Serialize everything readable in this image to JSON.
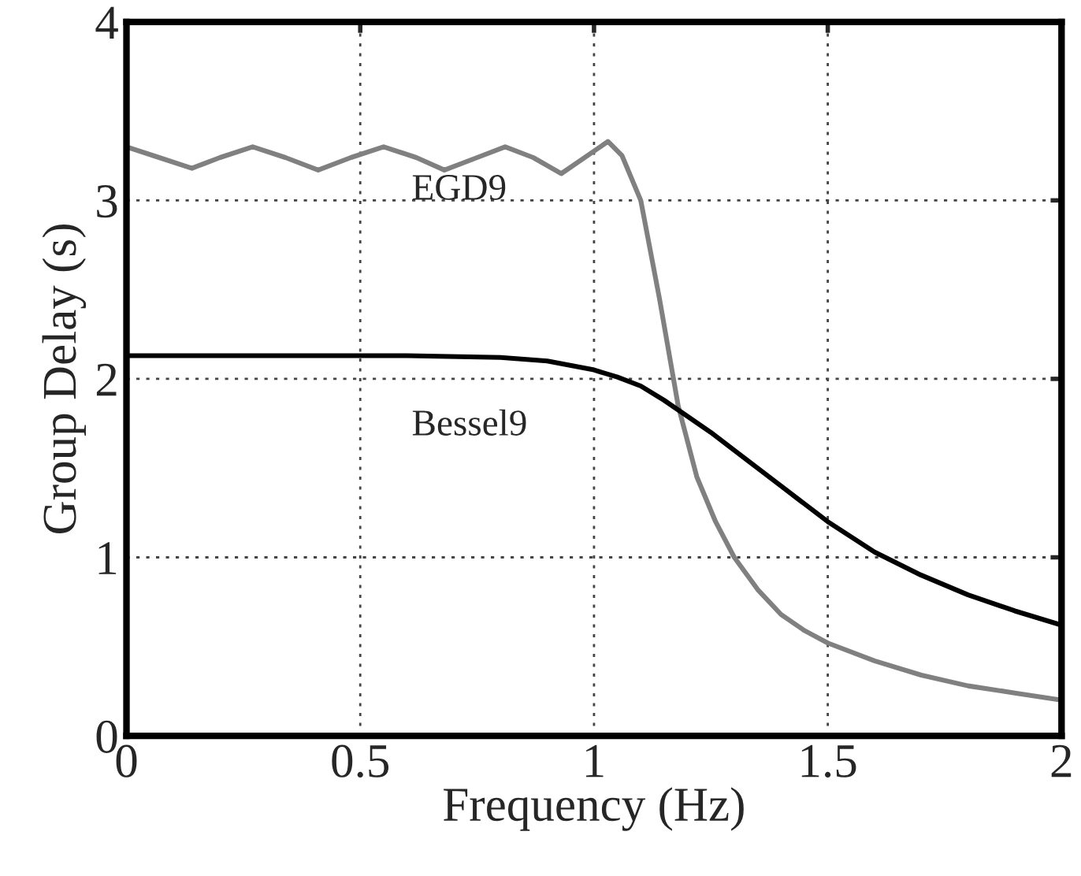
{
  "chart_data": {
    "type": "line",
    "xlabel": "Frequency (Hz)",
    "ylabel": "Group Delay (s)",
    "xlim": [
      0,
      2
    ],
    "ylim": [
      0,
      4
    ],
    "xticks": [
      0,
      {
        "value": 0.5,
        "label": "0.5"
      },
      1,
      {
        "value": 1.5,
        "label": "1.5"
      },
      2
    ],
    "yticks": [
      0,
      1,
      2,
      3,
      4
    ],
    "grid": true,
    "legend": false,
    "line_style": "solid",
    "marker": "none",
    "series": [
      {
        "name": "EGD9",
        "color": "#808080",
        "x": [
          0,
          0.07,
          0.14,
          0.2,
          0.27,
          0.34,
          0.41,
          0.48,
          0.55,
          0.62,
          0.68,
          0.75,
          0.81,
          0.87,
          0.93,
          0.98,
          1.03,
          1.06,
          1.1,
          1.14,
          1.18,
          1.22,
          1.26,
          1.3,
          1.35,
          1.4,
          1.45,
          1.5,
          1.6,
          1.7,
          1.8,
          1.9,
          2
        ],
        "values": [
          3.3,
          3.24,
          3.18,
          3.24,
          3.3,
          3.24,
          3.17,
          3.24,
          3.3,
          3.24,
          3.17,
          3.24,
          3.3,
          3.24,
          3.15,
          3.24,
          3.33,
          3.25,
          3.0,
          2.45,
          1.85,
          1.45,
          1.2,
          1.0,
          0.82,
          0.68,
          0.59,
          0.52,
          0.42,
          0.34,
          0.28,
          0.24,
          0.2
        ]
      },
      {
        "name": "Bessel9",
        "color": "#000000",
        "x": [
          0,
          0.2,
          0.4,
          0.6,
          0.8,
          0.9,
          1.0,
          1.05,
          1.1,
          1.15,
          1.2,
          1.25,
          1.3,
          1.4,
          1.5,
          1.6,
          1.7,
          1.8,
          1.9,
          2
        ],
        "values": [
          2.13,
          2.13,
          2.13,
          2.13,
          2.12,
          2.1,
          2.05,
          2.01,
          1.96,
          1.88,
          1.79,
          1.7,
          1.6,
          1.4,
          1.2,
          1.03,
          0.9,
          0.79,
          0.7,
          0.62
        ]
      }
    ]
  }
}
